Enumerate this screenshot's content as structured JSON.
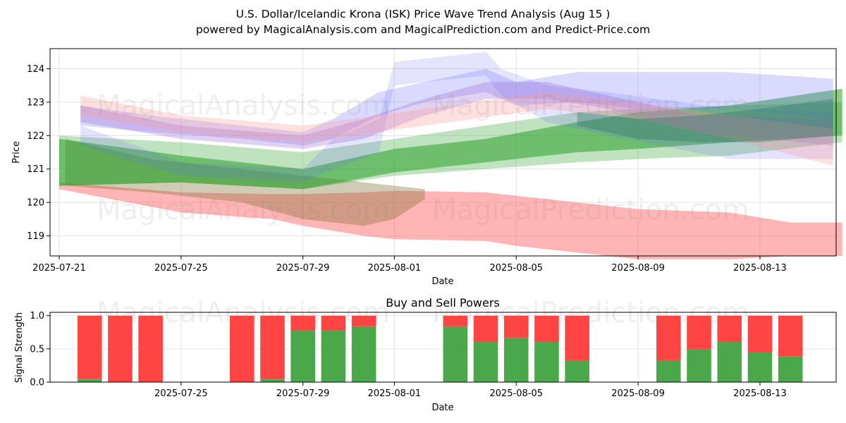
{
  "title": "U.S. Dollar/Icelandic Krona (ISK) Price Wave Trend Analysis (Aug 15 )",
  "subtitle": "powered by MagicalAnalysis.com and MagicalPrediction.com and Predict-Price.com",
  "watermarks": [
    "MagicalAnalysis.com",
    "MagicalPrediction.com"
  ],
  "colors": {
    "green": "#2ca02c",
    "red": "#ff5a5a",
    "blue": "#6a6aff",
    "purple": "#9966cc",
    "pink": "#ff9999",
    "teal": "#2f6f6a",
    "olive": "#7a6a2a",
    "buy": "#4aa84a",
    "sell": "#ff4444"
  },
  "chart_data": [
    {
      "type": "area",
      "title": "",
      "xlabel": "Date",
      "ylabel": "Price",
      "xlim": [
        -0.3,
        25.5
      ],
      "ylim": [
        118.4,
        124.6
      ],
      "x_ticks": [
        {
          "x": 0,
          "label": "2025-07-21"
        },
        {
          "x": 4,
          "label": "2025-07-25"
        },
        {
          "x": 8,
          "label": "2025-07-29"
        },
        {
          "x": 11,
          "label": "2025-08-01"
        },
        {
          "x": 15,
          "label": "2025-08-05"
        },
        {
          "x": 19,
          "label": "2025-08-09"
        },
        {
          "x": 23,
          "label": "2025-08-13"
        }
      ],
      "y_ticks": [
        119,
        120,
        121,
        122,
        123,
        124
      ],
      "grid": true,
      "series": [
        {
          "name": "red-band",
          "color": "red",
          "opacity": 0.45,
          "x": [
            0,
            4,
            7,
            8,
            10,
            11,
            14,
            15,
            19,
            22,
            24,
            25.7
          ],
          "upper": [
            120.6,
            120.3,
            120.25,
            120.25,
            120.3,
            120.35,
            120.3,
            120.2,
            119.8,
            119.7,
            119.4,
            119.4
          ],
          "lower": [
            120.4,
            119.7,
            119.5,
            119.3,
            119.0,
            118.9,
            118.85,
            118.7,
            118.3,
            118.3,
            118.4,
            118.4
          ]
        },
        {
          "name": "olive-band",
          "color": "olive",
          "opacity": 0.35,
          "x": [
            0.2,
            3,
            6,
            8,
            10,
            11,
            12
          ],
          "upper": [
            121.9,
            121.3,
            121.0,
            120.8,
            120.6,
            120.5,
            120.4
          ],
          "lower": [
            120.5,
            120.3,
            120.0,
            119.5,
            119.3,
            119.5,
            120.1
          ]
        },
        {
          "name": "green-band-light",
          "color": "green",
          "opacity": 0.3,
          "x": [
            0,
            4,
            8,
            11,
            14,
            17,
            19,
            22,
            25.7
          ],
          "upper": [
            122.0,
            121.8,
            121.5,
            121.9,
            122.3,
            122.7,
            122.8,
            122.9,
            123.0
          ],
          "lower": [
            120.5,
            120.6,
            120.4,
            120.8,
            121.0,
            121.2,
            121.3,
            121.4,
            121.8
          ]
        },
        {
          "name": "green-band-dark",
          "color": "green",
          "opacity": 0.55,
          "x": [
            0,
            4,
            8,
            11,
            14,
            17,
            19,
            22,
            25.7
          ],
          "upper": [
            121.9,
            121.4,
            121.0,
            121.6,
            121.9,
            122.4,
            122.7,
            122.9,
            123.4
          ],
          "lower": [
            120.5,
            120.6,
            120.4,
            120.9,
            121.2,
            121.5,
            121.6,
            121.8,
            122.0
          ]
        },
        {
          "name": "blue-band-1",
          "color": "blue",
          "opacity": 0.25,
          "x": [
            0.7,
            3,
            6,
            8,
            9,
            10.5,
            12,
            14,
            15,
            17,
            19,
            22,
            25.4
          ],
          "upper": [
            122.9,
            122.6,
            122.3,
            122.1,
            122.5,
            123.3,
            123.6,
            124.0,
            123.6,
            123.9,
            123.9,
            123.9,
            123.7
          ],
          "lower": [
            122.3,
            122.1,
            121.9,
            121.7,
            121.9,
            122.6,
            123.0,
            123.3,
            122.9,
            123.0,
            122.8,
            122.8,
            122.5
          ]
        },
        {
          "name": "blue-band-2",
          "color": "blue",
          "opacity": 0.18,
          "x": [
            0.7,
            4,
            8,
            9,
            10.5,
            11,
            14,
            14.5,
            16,
            18,
            22,
            25.4
          ],
          "upper": [
            122.3,
            121.2,
            121.0,
            121.9,
            122.5,
            124.2,
            124.5,
            124.0,
            123.5,
            123.3,
            122.8,
            122.7
          ],
          "lower": [
            121.7,
            120.8,
            120.6,
            121.0,
            121.5,
            123.5,
            123.8,
            123.2,
            122.4,
            122.0,
            121.3,
            121.3
          ]
        },
        {
          "name": "purple-band",
          "color": "purple",
          "opacity": 0.3,
          "x": [
            0.7,
            4,
            8,
            10,
            12,
            14,
            16,
            18,
            21,
            25.4
          ],
          "upper": [
            122.9,
            122.3,
            122.0,
            122.5,
            123.1,
            123.6,
            123.6,
            123.2,
            122.6,
            122.5
          ],
          "lower": [
            122.4,
            121.9,
            121.6,
            121.9,
            122.6,
            123.1,
            123.1,
            122.8,
            122.1,
            121.7
          ]
        },
        {
          "name": "pink-band",
          "color": "pink",
          "opacity": 0.3,
          "x": [
            0.7,
            4,
            8,
            12,
            16,
            19,
            22,
            25.4
          ],
          "upper": [
            123.2,
            122.6,
            122.3,
            122.8,
            123.3,
            123.0,
            122.6,
            122.2
          ],
          "lower": [
            122.6,
            122.1,
            121.8,
            122.3,
            122.8,
            122.5,
            121.9,
            121.1
          ]
        },
        {
          "name": "teal-band",
          "color": "teal",
          "opacity": 0.35,
          "x": [
            17,
            19,
            21,
            23,
            25.4
          ],
          "upper": [
            122.7,
            122.5,
            122.6,
            122.8,
            123.1
          ],
          "lower": [
            122.3,
            121.9,
            121.8,
            121.8,
            122.0
          ]
        }
      ]
    },
    {
      "type": "bar",
      "title": "Buy and Sell Powers",
      "xlabel": "Date",
      "ylabel": "Signal Strength",
      "xlim": [
        -0.3,
        25.5
      ],
      "ylim": [
        0,
        1.05
      ],
      "x_ticks": [
        {
          "x": 4,
          "label": "2025-07-25"
        },
        {
          "x": 8,
          "label": "2025-07-29"
        },
        {
          "x": 11,
          "label": "2025-08-01"
        },
        {
          "x": 15,
          "label": "2025-08-05"
        },
        {
          "x": 19,
          "label": "2025-08-09"
        },
        {
          "x": 23,
          "label": "2025-08-13"
        }
      ],
      "y_ticks": [
        "0.0",
        "0.5",
        "1.0"
      ],
      "grid": true,
      "bars": [
        {
          "x": 1,
          "buy": 0.05
        },
        {
          "x": 2,
          "buy": 0.0
        },
        {
          "x": 3,
          "buy": 0.0
        },
        {
          "x": 6,
          "buy": 0.0
        },
        {
          "x": 7,
          "buy": 0.05
        },
        {
          "x": 8,
          "buy": 0.78
        },
        {
          "x": 9,
          "buy": 0.78
        },
        {
          "x": 10,
          "buy": 0.84
        },
        {
          "x": 13,
          "buy": 0.84
        },
        {
          "x": 14,
          "buy": 0.61
        },
        {
          "x": 15,
          "buy": 0.67
        },
        {
          "x": 16,
          "buy": 0.61
        },
        {
          "x": 17,
          "buy": 0.33
        },
        {
          "x": 20,
          "buy": 0.33
        },
        {
          "x": 21,
          "buy": 0.5
        },
        {
          "x": 22,
          "buy": 0.61
        },
        {
          "x": 23,
          "buy": 0.45
        },
        {
          "x": 24,
          "buy": 0.39
        }
      ],
      "total": 1.0
    }
  ]
}
